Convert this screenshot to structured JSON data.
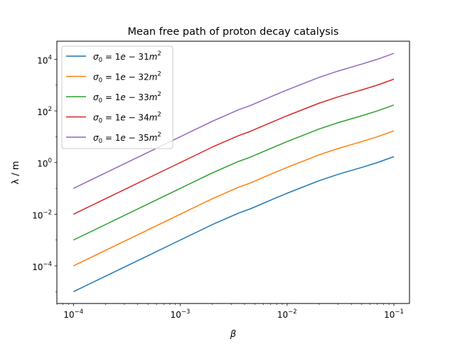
{
  "chart_data": {
    "type": "line",
    "title": "Mean free path of proton decay catalysis",
    "xlabel": "β",
    "ylabel": "λ / m",
    "xscale": "log",
    "yscale": "log",
    "xlim": [
      7e-05,
      0.14
    ],
    "ylim": [
      3.5e-06,
      50000.0
    ],
    "grid": false,
    "legend_position": "top-left",
    "x": [
      0.0001,
      0.0002,
      0.0005,
      0.001,
      0.002,
      0.0035,
      0.0045,
      0.007,
      0.01,
      0.02,
      0.03,
      0.05,
      0.07,
      0.1
    ],
    "x_ticks": [
      {
        "value": 0.0001,
        "base": "10",
        "exp": "−4"
      },
      {
        "value": 0.001,
        "base": "10",
        "exp": "−3"
      },
      {
        "value": 0.01,
        "base": "10",
        "exp": "−2"
      },
      {
        "value": 0.1,
        "base": "10",
        "exp": "−1"
      }
    ],
    "y_ticks": [
      {
        "value": 0.0001,
        "base": "10",
        "exp": "−4"
      },
      {
        "value": 0.01,
        "base": "10",
        "exp": "−2"
      },
      {
        "value": 1,
        "base": "10",
        "exp": "0"
      },
      {
        "value": 100,
        "base": "10",
        "exp": "2"
      },
      {
        "value": 10000,
        "base": "10",
        "exp": "4"
      }
    ],
    "series": [
      {
        "name": "σ_0 = 1e−31 m^2",
        "legend": {
          "sym": "σ",
          "sub": "0",
          "mid": " = 1",
          "mant": "e",
          "rest": " − 31",
          "unit": "m",
          "sup": "2"
        },
        "color": "#1f77b4",
        "values": [
          1e-05,
          4e-05,
          0.00025,
          0.001,
          0.004,
          0.011,
          0.016,
          0.035,
          0.065,
          0.2,
          0.35,
          0.65,
          1.0,
          1.7
        ]
      },
      {
        "name": "σ_0 = 1e−32 m^2",
        "legend": {
          "sym": "σ",
          "sub": "0",
          "mid": " = 1",
          "mant": "e",
          "rest": " − 32",
          "unit": "m",
          "sup": "2"
        },
        "color": "#ff7f0e",
        "values": [
          0.0001,
          0.0004,
          0.0025,
          0.01,
          0.04,
          0.11,
          0.16,
          0.35,
          0.65,
          2.0,
          3.5,
          6.5,
          10,
          17
        ]
      },
      {
        "name": "σ_0 = 1e−33 m^2",
        "legend": {
          "sym": "σ",
          "sub": "0",
          "mid": " = 1",
          "mant": "e",
          "rest": " − 33",
          "unit": "m",
          "sup": "2"
        },
        "color": "#2ca02c",
        "values": [
          0.001,
          0.004,
          0.025,
          0.1,
          0.4,
          1.1,
          1.6,
          3.5,
          6.5,
          20,
          35,
          65,
          100,
          170
        ]
      },
      {
        "name": "σ_0 = 1e−34 m^2",
        "legend": {
          "sym": "σ",
          "sub": "0",
          "mid": " = 1",
          "mant": "e",
          "rest": " − 34",
          "unit": "m",
          "sup": "2"
        },
        "color": "#d62728",
        "values": [
          0.01,
          0.04,
          0.25,
          1.0,
          4.0,
          11,
          16,
          35,
          65,
          200,
          350,
          650,
          1000,
          1700
        ]
      },
      {
        "name": "σ_0 = 1e−35 m^2",
        "legend": {
          "sym": "σ",
          "sub": "0",
          "mid": " = 1",
          "mant": "e",
          "rest": " − 35",
          "unit": "m",
          "sup": "2"
        },
        "color": "#9467bd",
        "values": [
          0.1,
          0.4,
          2.5,
          10,
          40,
          110,
          160,
          350,
          650,
          2000,
          3500,
          6500,
          10000,
          17000
        ]
      }
    ]
  }
}
